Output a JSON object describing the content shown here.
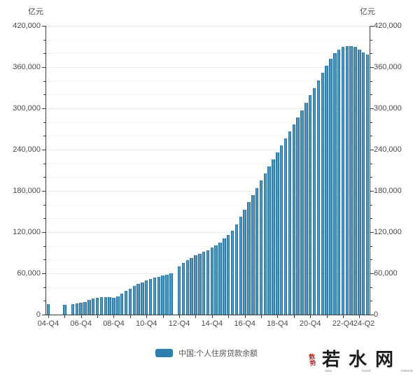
{
  "units": {
    "left": "亿元",
    "right": "亿元"
  },
  "legend": {
    "label": "中国:个人住房贷款余额",
    "swatch_color": "#2e7fae"
  },
  "watermark": {
    "seal_text": "数势",
    "site_name": "若水网",
    "sub_words": [
      "data",
      "invest",
      "network"
    ],
    "seal_color": "#b03030"
  },
  "chart_data": {
    "type": "bar",
    "title": "",
    "xlabel": "",
    "ylabel": "亿元",
    "ylim": [
      0,
      420000
    ],
    "y_major_step": 60000,
    "y_minor_step": 20000,
    "grid": true,
    "legend_position": "bottom",
    "bar_color": "#2e7fae",
    "x_tick_labels": [
      "04-Q4",
      "06-Q4",
      "08-Q4",
      "10-Q4",
      "12-Q4",
      "14-Q4",
      "16-Q4",
      "18-Q4",
      "20-Q4",
      "22-Q4",
      "24-Q2"
    ],
    "series": [
      {
        "name": "中国:个人住房贷款余额",
        "points": [
          [
            "04-Q4",
            15000
          ],
          [
            "05-Q1",
            null
          ],
          [
            "05-Q2",
            null
          ],
          [
            "05-Q3",
            null
          ],
          [
            "05-Q4",
            14600
          ],
          [
            "06-Q1",
            null
          ],
          [
            "06-Q2",
            15200
          ],
          [
            "06-Q3",
            16700
          ],
          [
            "06-Q4",
            17700
          ],
          [
            "07-Q1",
            18400
          ],
          [
            "07-Q2",
            21000
          ],
          [
            "07-Q3",
            23400
          ],
          [
            "07-Q4",
            24500
          ],
          [
            "08-Q1",
            25100
          ],
          [
            "08-Q2",
            25800
          ],
          [
            "08-Q3",
            25200
          ],
          [
            "08-Q4",
            24200
          ],
          [
            "09-Q1",
            26000
          ],
          [
            "09-Q2",
            30500
          ],
          [
            "09-Q3",
            34300
          ],
          [
            "09-Q4",
            37800
          ],
          [
            "10-Q1",
            42100
          ],
          [
            "10-Q2",
            44800
          ],
          [
            "10-Q3",
            47200
          ],
          [
            "10-Q4",
            49600
          ],
          [
            "11-Q1",
            51900
          ],
          [
            "11-Q2",
            53900
          ],
          [
            "11-Q3",
            54700
          ],
          [
            "11-Q4",
            56600
          ],
          [
            "12-Q1",
            58100
          ],
          [
            "12-Q2",
            60100
          ],
          [
            "12-Q3",
            null
          ],
          [
            "12-Q4",
            70300
          ],
          [
            "13-Q1",
            75100
          ],
          [
            "13-Q2",
            79300
          ],
          [
            "13-Q3",
            82800
          ],
          [
            "13-Q4",
            86100
          ],
          [
            "14-Q1",
            88500
          ],
          [
            "14-Q2",
            91200
          ],
          [
            "14-Q3",
            94000
          ],
          [
            "14-Q4",
            97300
          ],
          [
            "15-Q1",
            100700
          ],
          [
            "15-Q2",
            104800
          ],
          [
            "15-Q3",
            110500
          ],
          [
            "15-Q4",
            115600
          ],
          [
            "16-Q1",
            122400
          ],
          [
            "16-Q2",
            131200
          ],
          [
            "16-Q3",
            142100
          ],
          [
            "16-Q4",
            153000
          ],
          [
            "17-Q1",
            164100
          ],
          [
            "17-Q2",
            174300
          ],
          [
            "17-Q3",
            184500
          ],
          [
            "17-Q4",
            194800
          ],
          [
            "18-Q1",
            205000
          ],
          [
            "18-Q2",
            215200
          ],
          [
            "18-Q3",
            225400
          ],
          [
            "18-Q4",
            235600
          ],
          [
            "19-Q1",
            245800
          ],
          [
            "19-Q2",
            256000
          ],
          [
            "19-Q3",
            266200
          ],
          [
            "19-Q4",
            276400
          ],
          [
            "20-Q1",
            286600
          ],
          [
            "20-Q2",
            297000
          ],
          [
            "20-Q3",
            308000
          ],
          [
            "20-Q4",
            319000
          ],
          [
            "21-Q1",
            330000
          ],
          [
            "21-Q2",
            341000
          ],
          [
            "21-Q3",
            352000
          ],
          [
            "21-Q4",
            362000
          ],
          [
            "22-Q1",
            372000
          ],
          [
            "22-Q2",
            380000
          ],
          [
            "22-Q3",
            385500
          ],
          [
            "22-Q4",
            389000
          ],
          [
            "23-Q1",
            390500
          ],
          [
            "23-Q2",
            390500
          ],
          [
            "23-Q3",
            389000
          ],
          [
            "23-Q4",
            385500
          ],
          [
            "24-Q1",
            381000
          ],
          [
            "24-Q2",
            378300
          ]
        ]
      }
    ]
  }
}
